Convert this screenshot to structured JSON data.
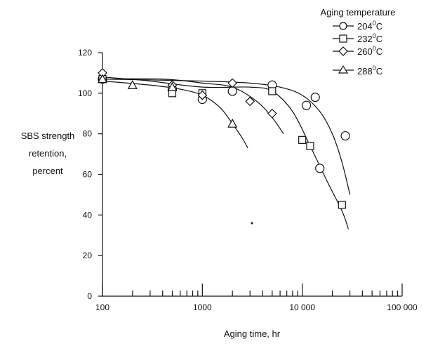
{
  "chart_data": {
    "type": "scatter",
    "xlabel": "Aging time, hr",
    "ylabel_lines": [
      "SBS strength",
      "retention,",
      "percent"
    ],
    "xscale": "log",
    "xlim": [
      100,
      100000
    ],
    "ylim": [
      0,
      120
    ],
    "xticks": [
      100,
      1000,
      10000,
      100000
    ],
    "xtick_labels": [
      "100",
      "1000",
      "10 000",
      "100 000"
    ],
    "yticks": [
      0,
      20,
      40,
      60,
      80,
      100,
      120
    ],
    "ytick_labels": [
      "0",
      "20",
      "40",
      "60",
      "80",
      "100",
      "120"
    ],
    "grid": false,
    "legend": {
      "title": "Aging temperature",
      "placement": "top-right"
    },
    "series": [
      {
        "name": "204°C",
        "label_main": "204",
        "label_sup": "0",
        "label_unit": "C",
        "marker": "circle",
        "points": [
          {
            "x": 100,
            "y": 107
          },
          {
            "x": 500,
            "y": 102
          },
          {
            "x": 1000,
            "y": 97
          },
          {
            "x": 2000,
            "y": 101
          },
          {
            "x": 5000,
            "y": 104
          },
          {
            "x": 11000,
            "y": 94
          },
          {
            "x": 13500,
            "y": 98
          },
          {
            "x": 15000,
            "y": 63
          },
          {
            "x": 27000,
            "y": 79
          }
        ],
        "curve": [
          {
            "x": 100,
            "y": 107
          },
          {
            "x": 1000,
            "y": 106
          },
          {
            "x": 3000,
            "y": 105
          },
          {
            "x": 6000,
            "y": 103
          },
          {
            "x": 10000,
            "y": 99
          },
          {
            "x": 15000,
            "y": 91
          },
          {
            "x": 20000,
            "y": 80
          },
          {
            "x": 25000,
            "y": 66
          },
          {
            "x": 30000,
            "y": 50
          }
        ]
      },
      {
        "name": "232°C",
        "label_main": "232",
        "label_sup": "0",
        "label_unit": "C",
        "marker": "square",
        "points": [
          {
            "x": 100,
            "y": 107
          },
          {
            "x": 500,
            "y": 100
          },
          {
            "x": 1000,
            "y": 100
          },
          {
            "x": 5000,
            "y": 101
          },
          {
            "x": 10000,
            "y": 77
          },
          {
            "x": 12000,
            "y": 74
          },
          {
            "x": 25000,
            "y": 45
          }
        ],
        "curve": [
          {
            "x": 100,
            "y": 108
          },
          {
            "x": 300,
            "y": 106
          },
          {
            "x": 1000,
            "y": 103
          },
          {
            "x": 3000,
            "y": 103
          },
          {
            "x": 5000,
            "y": 101
          },
          {
            "x": 8000,
            "y": 91
          },
          {
            "x": 12000,
            "y": 74
          },
          {
            "x": 18000,
            "y": 56
          },
          {
            "x": 25000,
            "y": 42
          },
          {
            "x": 29000,
            "y": 33
          }
        ]
      },
      {
        "name": "260°C",
        "label_main": "260",
        "label_sup": "0",
        "label_unit": "C",
        "marker": "diamond",
        "points": [
          {
            "x": 100,
            "y": 110
          },
          {
            "x": 500,
            "y": 104
          },
          {
            "x": 1000,
            "y": 99
          },
          {
            "x": 2000,
            "y": 105
          },
          {
            "x": 3000,
            "y": 96
          },
          {
            "x": 5000,
            "y": 90
          }
        ],
        "curve": [
          {
            "x": 100,
            "y": 107
          },
          {
            "x": 400,
            "y": 107
          },
          {
            "x": 1000,
            "y": 105
          },
          {
            "x": 2000,
            "y": 103
          },
          {
            "x": 3500,
            "y": 96
          },
          {
            "x": 5000,
            "y": 88
          },
          {
            "x": 6500,
            "y": 80
          }
        ]
      },
      {
        "name": "288°C",
        "label_main": "288",
        "label_sup": "0",
        "label_unit": "C",
        "marker": "triangle",
        "points": [
          {
            "x": 100,
            "y": 107
          },
          {
            "x": 200,
            "y": 104
          },
          {
            "x": 500,
            "y": 103
          },
          {
            "x": 2000,
            "y": 85
          }
        ],
        "curve": [
          {
            "x": 100,
            "y": 106
          },
          {
            "x": 300,
            "y": 104
          },
          {
            "x": 600,
            "y": 102
          },
          {
            "x": 1000,
            "y": 99
          },
          {
            "x": 1500,
            "y": 93
          },
          {
            "x": 2000,
            "y": 85
          },
          {
            "x": 2500,
            "y": 78
          },
          {
            "x": 2850,
            "y": 73
          }
        ]
      }
    ]
  }
}
